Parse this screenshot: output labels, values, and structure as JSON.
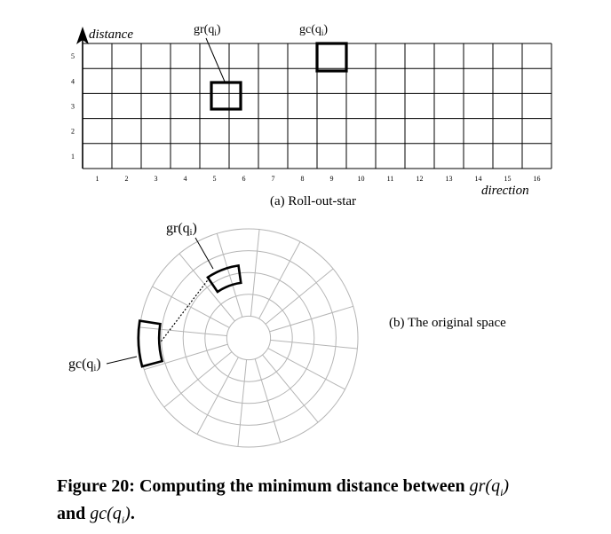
{
  "grid": {
    "y_axis_label": "distance",
    "x_axis_label": "direction",
    "columns": 16,
    "rows": 5,
    "x_ticks": [
      "1",
      "2",
      "3",
      "4",
      "5",
      "6",
      "7",
      "8",
      "9",
      "10",
      "11",
      "12",
      "13",
      "14",
      "15",
      "16"
    ],
    "y_ticks": [
      "1",
      "2",
      "3",
      "4",
      "5"
    ],
    "caption": "(a) Roll-out-star",
    "cells": [
      {
        "label": "gr(q",
        "sub": "i",
        "close": ")",
        "column": 6,
        "row": 4
      },
      {
        "label": "gc(q",
        "sub": "i",
        "close": ")",
        "column": 9,
        "row": 5
      }
    ]
  },
  "polar": {
    "caption": "(b) The original space",
    "rings": 5,
    "sectors": 16,
    "gr_label": {
      "label": "gr(q",
      "sub": "i",
      "close": ")"
    },
    "gc_label": {
      "label": "gc(q",
      "sub": "i",
      "close": ")"
    }
  },
  "caption": {
    "prefix": "Figure 20:  Computing the minimum distance between",
    "math1": "gr(q",
    "math1_sub": "i",
    "math1_close": ")",
    "middle": "and",
    "math2": "gc(q",
    "math2_sub": "i",
    "math2_close": ")",
    "end": "."
  }
}
